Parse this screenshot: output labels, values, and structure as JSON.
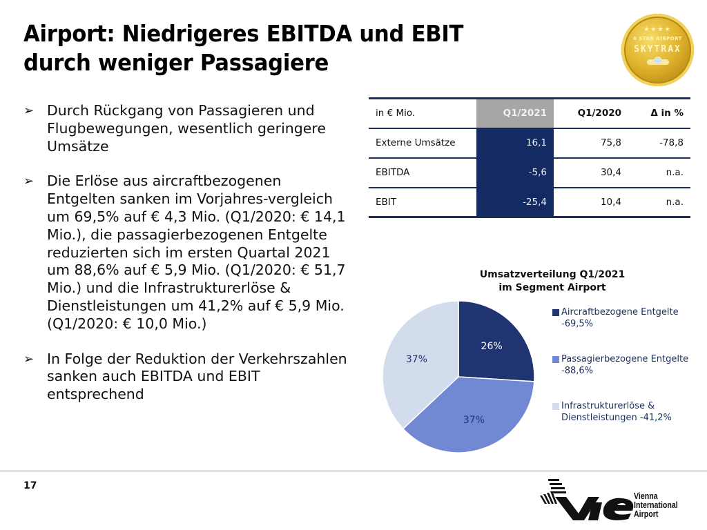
{
  "slide": {
    "title_line1": "Airport: Niedrigeres EBITDA und EBIT",
    "title_line2": "durch weniger Passagiere",
    "page_number": "17"
  },
  "badge": {
    "stars": "★★★★",
    "label": "4 STAR AIRPORT",
    "brand": "SKYTRAX",
    "color": "#D4A72C"
  },
  "bullets": [
    {
      "icon": "arrow-bullet-icon",
      "text": "Durch Rückgang von Passagieren und Flugbewegungen, wesentlich geringere Umsätze"
    },
    {
      "icon": "arrow-bullet-icon",
      "text": "Die Erlöse aus aircraftbezogenen Entgelten sanken im Vorjahres-vergleich um 69,5% auf € 4,3 Mio. (Q1/2020: € 14,1 Mio.), die passagierbezogenen Entgelte reduzierten sich im ersten Quartal 2021 um 88,6% auf € 5,9 Mio. (Q1/2020: € 51,7 Mio.) und die Infrastrukturerlöse & Dienstleistungen um 41,2% auf € 5,9 Mio. (Q1/2020: € 10,0 Mio.)"
    },
    {
      "icon": "arrow-bullet-icon",
      "text": "In Folge der Reduktion der Verkehrszahlen sanken auch EBITDA und EBIT entsprechend"
    }
  ],
  "table": {
    "headers": [
      "in € Mio.",
      "Q1/2021",
      "Q1/2020",
      "Δ in %"
    ],
    "rows": [
      [
        "Externe Umsätze",
        "16,1",
        "75,8",
        "-78,8"
      ],
      [
        "EBITDA",
        "-5,6",
        "30,4",
        "n.a."
      ],
      [
        "EBIT",
        "-25,4",
        "10,4",
        "n.a."
      ]
    ],
    "colors": {
      "border": "#1A2E5C",
      "highlight_col": "#142A63",
      "highlight_head": "#A6A6A6"
    }
  },
  "chart_data": {
    "type": "pie",
    "title": "Umsatzverteilung Q1/2021 im Segment Airport",
    "title_line1": "Umsatzverteilung Q1/2021",
    "title_line2": "im Segment Airport",
    "categories": [
      "Aircraftbezogene Entgelte",
      "Passagierbezogene Entgelte",
      "Infrastrukturerlöse & Dienstleistungen"
    ],
    "values": [
      26,
      37,
      37
    ],
    "data_labels": [
      "26%",
      "37%",
      "37%"
    ],
    "colors": [
      "#1F3470",
      "#7089D2",
      "#D3DCEC"
    ],
    "label_colors": [
      "#FFFFFF",
      "#1F3470",
      "#1F3470"
    ],
    "start_angle_deg": 0,
    "direction": "clockwise",
    "legend": [
      {
        "line1": "Aircraftbezogene Entgelte",
        "line2": "-69,5%"
      },
      {
        "line1": "Passagierbezogene Entgelte",
        "line2": "-88,6%"
      },
      {
        "line1": "Infrastrukturerlöse &",
        "line2": "Dienstleistungen -41,2%"
      }
    ],
    "legend_position": "right"
  },
  "logo": {
    "mark": "VIE",
    "line1": "Vienna",
    "line2": "International",
    "line3": "Airport"
  }
}
